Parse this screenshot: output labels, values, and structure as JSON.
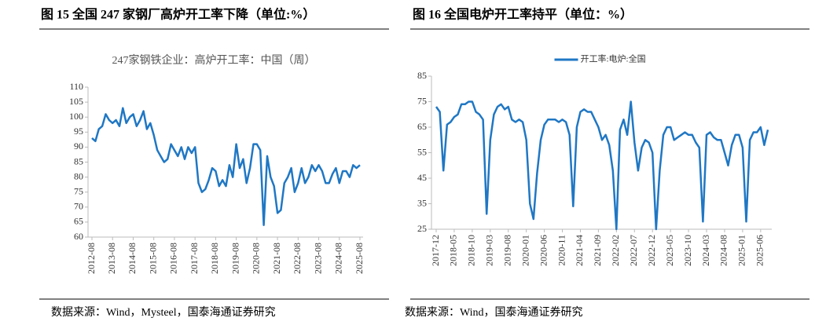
{
  "chart_data": [
    {
      "type": "line",
      "title": "图 15 全国 247 家钢厂高炉开工率下降（单位:%）",
      "subtitle": "247家钢铁企业：高炉开工率：中国（周）",
      "source": "数据来源：Wind，Mysteel，国泰海通证券研究",
      "color": "#1f77c4",
      "categories": [
        "2012-08",
        null,
        null,
        null,
        null,
        null,
        "2013-08",
        null,
        null,
        null,
        null,
        null,
        "2014-08",
        null,
        null,
        null,
        null,
        null,
        "2015-08",
        null,
        null,
        null,
        null,
        null,
        "2016-08",
        null,
        null,
        null,
        null,
        null,
        "2017-08",
        null,
        null,
        null,
        null,
        null,
        "2018-08",
        null,
        null,
        null,
        null,
        null,
        "2019-08",
        null,
        null,
        null,
        null,
        null,
        "2020-08",
        null,
        null,
        null,
        null,
        null,
        "2021-08",
        null,
        null,
        null,
        null,
        null,
        "2022-08",
        null,
        null,
        null,
        null,
        null,
        "2023-08",
        null,
        null,
        null,
        null,
        null,
        "2024-08",
        null,
        null,
        null,
        null,
        null,
        "2025-08"
      ],
      "values": [
        93,
        92,
        96,
        97,
        101,
        99,
        98,
        99,
        97,
        103,
        98,
        100,
        101,
        97,
        99,
        102,
        96,
        98,
        94,
        89,
        87,
        85,
        86,
        91,
        89,
        87,
        90,
        86,
        90,
        88,
        90,
        78,
        75,
        76,
        79,
        83,
        82,
        77,
        79,
        77,
        84,
        80,
        91,
        83,
        86,
        78,
        83,
        91,
        91,
        89,
        64,
        87,
        80,
        77,
        68,
        69,
        78,
        80,
        83,
        75,
        78,
        83,
        78,
        80,
        84,
        82,
        84,
        82,
        78,
        78,
        81,
        83,
        78,
        82,
        82,
        80,
        84,
        83,
        84
      ],
      "ylim": [
        60,
        110
      ],
      "yticks": [
        60,
        65,
        70,
        75,
        80,
        85,
        90,
        95,
        100,
        105,
        110
      ],
      "grid": false
    },
    {
      "type": "line",
      "title": "图 16 全国电炉开工率持平（单位：%）",
      "source": "数据来源：Wind，国泰海通证券研究",
      "legend": "top",
      "categories": [
        "2017-12",
        null,
        null,
        null,
        null,
        "2018-05",
        null,
        null,
        null,
        null,
        "2018-10",
        null,
        null,
        null,
        null,
        "2019-03",
        null,
        null,
        null,
        null,
        "2019-08",
        null,
        null,
        null,
        null,
        "2020-01",
        null,
        null,
        null,
        null,
        "2020-06",
        null,
        null,
        null,
        null,
        "2020-11",
        null,
        null,
        null,
        null,
        "2021-04",
        null,
        null,
        null,
        null,
        "2021-09",
        null,
        null,
        null,
        null,
        "2022-02",
        null,
        null,
        null,
        null,
        "2022-07",
        null,
        null,
        null,
        null,
        "2022-12",
        null,
        null,
        null,
        null,
        "2023-05",
        null,
        null,
        null,
        null,
        "2023-10",
        null,
        null,
        null,
        null,
        "2024-03",
        null,
        null,
        null,
        null,
        "2024-08",
        null,
        null,
        null,
        null,
        "2025-01",
        null,
        null,
        null,
        null,
        "2025-06",
        null,
        null
      ],
      "series": [
        {
          "name": "开工率:电炉:全国",
          "color": "#1f77c4",
          "values": [
            73,
            71,
            48,
            66,
            67,
            69,
            70,
            74,
            74,
            75,
            75,
            71,
            70,
            68,
            31,
            60,
            70,
            73,
            74,
            72,
            73,
            68,
            67,
            68,
            67,
            60,
            35,
            29,
            47,
            60,
            66,
            68,
            68,
            68,
            67,
            68,
            67,
            62,
            34,
            65,
            71,
            72,
            71,
            71,
            68,
            65,
            60,
            62,
            58,
            48,
            25,
            64,
            68,
            62,
            75,
            59,
            48,
            57,
            60,
            59,
            55,
            25,
            48,
            62,
            65,
            65,
            60,
            61,
            62,
            63,
            62,
            62,
            59,
            57,
            28,
            62,
            63,
            61,
            60,
            60,
            55,
            50,
            58,
            62,
            62,
            57,
            28,
            60,
            63,
            63,
            65,
            58,
            64
          ]
        }
      ],
      "ylim": [
        25,
        85
      ],
      "yticks": [
        25,
        35,
        45,
        55,
        65,
        75,
        85
      ],
      "grid": false
    }
  ]
}
